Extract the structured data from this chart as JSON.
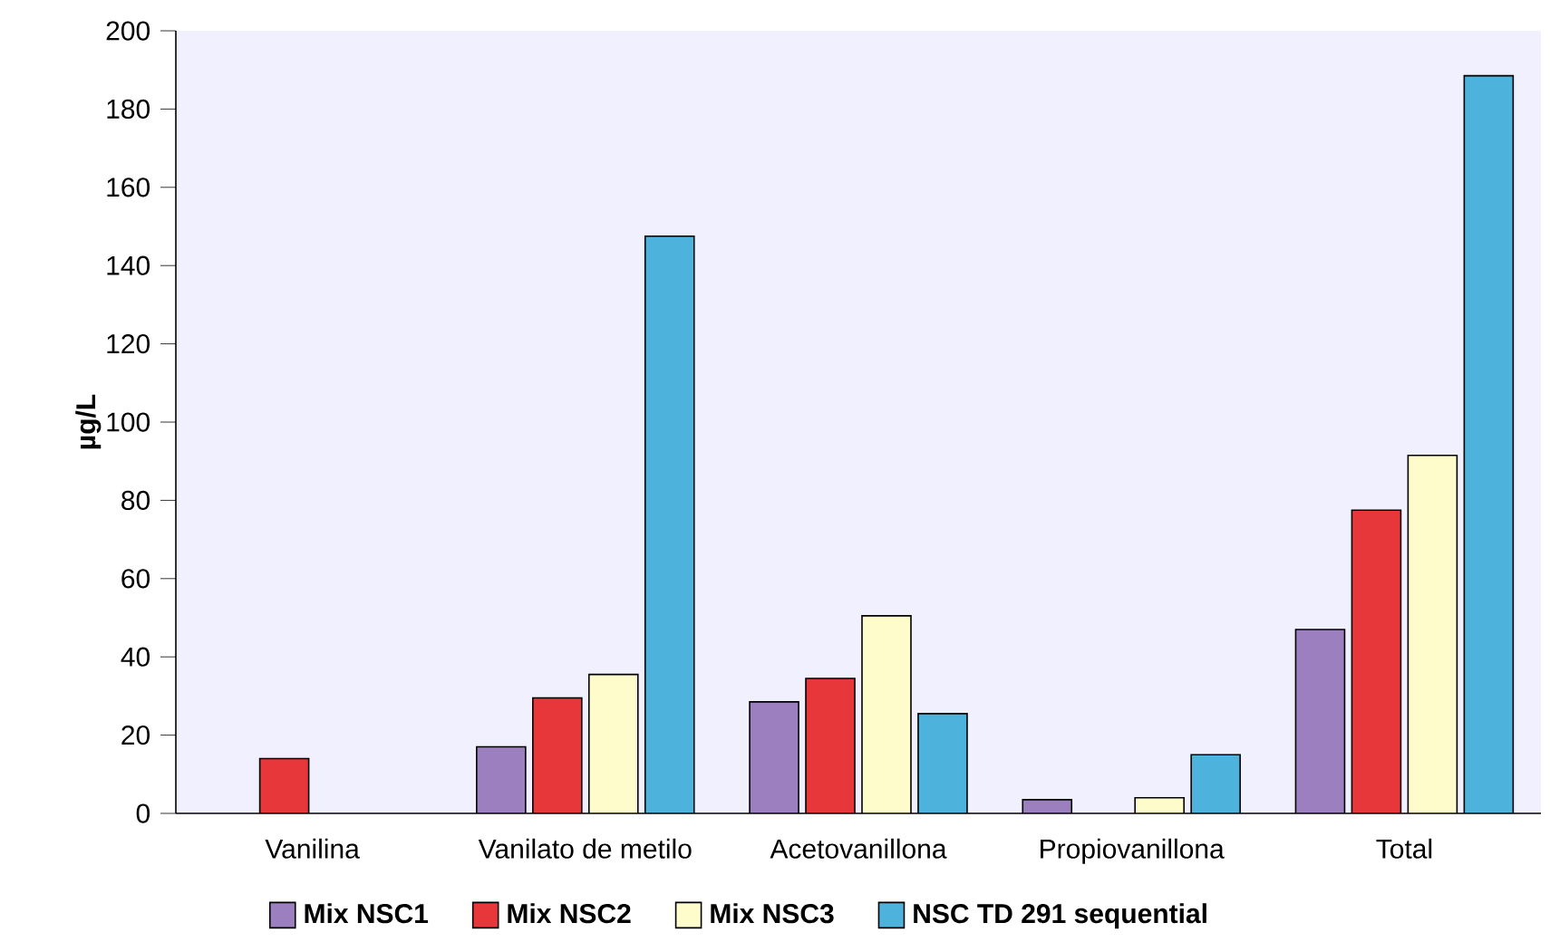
{
  "chart_data": {
    "type": "bar",
    "ylabel": "µg/L",
    "categories": [
      "Vanilina",
      "Vanilato de metilo",
      "Acetovanillona",
      "Propiovanillona",
      "Total"
    ],
    "series": [
      {
        "name": "Mix NSC1",
        "color": "#9b7fbf",
        "values": [
          null,
          17,
          28.5,
          3.5,
          47
        ]
      },
      {
        "name": "Mix NSC2",
        "color": "#e8373a",
        "values": [
          14,
          29.5,
          34.5,
          null,
          77.5
        ]
      },
      {
        "name": "Mix NSC3",
        "color": "#fffccc",
        "values": [
          null,
          35.5,
          50.5,
          4,
          91.5
        ]
      },
      {
        "name": "NSC TD 291 sequential",
        "color": "#4db3dc",
        "values": [
          null,
          147.5,
          25.5,
          15,
          188.5
        ]
      }
    ],
    "ylim": [
      0,
      200
    ],
    "yticks": [
      0,
      20,
      40,
      60,
      80,
      100,
      120,
      140,
      160,
      180,
      200
    ],
    "legend": "bottom",
    "grid": false
  }
}
